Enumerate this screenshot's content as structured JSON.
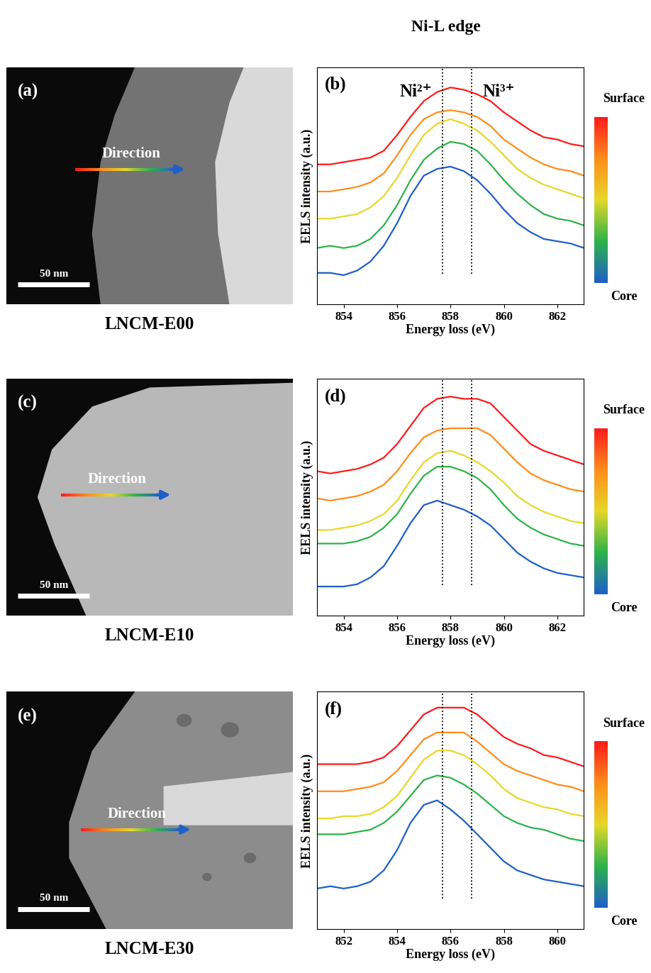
{
  "title": "Ni-L edge",
  "color_scale": {
    "top": "Surface",
    "bottom": "Core"
  },
  "images": [
    {
      "label": "(a)",
      "arrow_text": "Direction",
      "scale_bar": "50 nm",
      "sample": "LNCM-E00"
    },
    {
      "label": "(c)",
      "arrow_text": "Direction",
      "scale_bar": "50 nm",
      "sample": "LNCM-E10"
    },
    {
      "label": "(e)",
      "arrow_text": "Direction",
      "scale_bar": "50 nm",
      "sample": "LNCM-E30"
    }
  ],
  "chart_data": [
    {
      "type": "line",
      "panel_label": "(b)",
      "xlabel": "Energy loss (eV)",
      "ylabel": "EELS intensity (a.u.)",
      "annotations": [
        "Ni²⁺",
        "Ni³⁺"
      ],
      "vlines": [
        857.7,
        858.8
      ],
      "x": [
        853,
        853.5,
        854,
        854.5,
        855,
        855.5,
        856,
        856.5,
        857,
        857.5,
        858,
        858.5,
        859,
        859.5,
        860,
        860.5,
        861,
        861.5,
        862,
        862.5,
        863
      ],
      "xlim": [
        853,
        863
      ],
      "xticks": [
        854,
        856,
        858,
        860,
        862
      ],
      "ylim": [
        0,
        10.5
      ],
      "tick_labels": "x",
      "series": [
        {
          "color": "#ff1a1a",
          "values": [
            6.2,
            6.2,
            6.3,
            6.4,
            6.5,
            6.8,
            7.5,
            8.3,
            9.0,
            9.4,
            9.6,
            9.5,
            9.3,
            9.0,
            8.5,
            8.1,
            7.7,
            7.4,
            7.3,
            7.1,
            7.0
          ]
        },
        {
          "color": "#ff8c1a",
          "values": [
            5.0,
            5.0,
            5.1,
            5.2,
            5.4,
            5.8,
            6.6,
            7.5,
            8.2,
            8.5,
            8.6,
            8.5,
            8.3,
            7.9,
            7.3,
            6.9,
            6.5,
            6.2,
            6.0,
            5.9,
            5.7
          ]
        },
        {
          "color": "#e6d82a",
          "values": [
            3.8,
            3.8,
            3.9,
            4.0,
            4.3,
            4.8,
            5.6,
            6.6,
            7.5,
            8.0,
            8.2,
            8.0,
            7.7,
            7.2,
            6.6,
            6.0,
            5.6,
            5.3,
            5.1,
            4.9,
            4.7
          ]
        },
        {
          "color": "#2db34a",
          "values": [
            2.5,
            2.6,
            2.5,
            2.6,
            2.9,
            3.5,
            4.4,
            5.5,
            6.4,
            6.9,
            7.2,
            7.1,
            6.8,
            6.2,
            5.5,
            4.9,
            4.4,
            4.0,
            3.8,
            3.7,
            3.5
          ]
        },
        {
          "color": "#1f5fc8",
          "values": [
            1.4,
            1.4,
            1.3,
            1.5,
            1.9,
            2.6,
            3.6,
            4.8,
            5.7,
            6.0,
            6.1,
            5.9,
            5.5,
            4.9,
            4.2,
            3.6,
            3.2,
            2.9,
            2.8,
            2.7,
            2.5
          ]
        }
      ]
    },
    {
      "type": "line",
      "panel_label": "(d)",
      "xlabel": "Energy loss (eV)",
      "ylabel": "EELS intensity (a.u.)",
      "vlines": [
        857.7,
        858.8
      ],
      "x": [
        853,
        853.5,
        854,
        854.5,
        855,
        855.5,
        856,
        856.5,
        857,
        857.5,
        858,
        858.5,
        859,
        859.5,
        860,
        860.5,
        861,
        861.5,
        862,
        862.5,
        863
      ],
      "xlim": [
        853,
        863
      ],
      "xticks": [
        854,
        856,
        858,
        860,
        862
      ],
      "ylim": [
        0,
        10.5
      ],
      "tick_labels": "x",
      "series": [
        {
          "color": "#ff1a1a",
          "values": [
            6.4,
            6.3,
            6.4,
            6.5,
            6.7,
            7.0,
            7.6,
            8.4,
            9.2,
            9.6,
            9.7,
            9.6,
            9.6,
            9.4,
            8.8,
            8.2,
            7.6,
            7.3,
            7.1,
            6.9,
            6.7
          ]
        },
        {
          "color": "#ff8c1a",
          "values": [
            5.2,
            5.1,
            5.2,
            5.3,
            5.5,
            5.8,
            6.4,
            7.2,
            7.9,
            8.2,
            8.3,
            8.3,
            8.3,
            8.0,
            7.4,
            6.8,
            6.3,
            6.0,
            5.8,
            5.6,
            5.5
          ]
        },
        {
          "color": "#e6d82a",
          "values": [
            3.8,
            3.8,
            3.9,
            4.0,
            4.2,
            4.5,
            5.1,
            6.0,
            6.8,
            7.2,
            7.3,
            7.1,
            6.8,
            6.4,
            5.9,
            5.3,
            4.9,
            4.6,
            4.4,
            4.2,
            4.1
          ]
        },
        {
          "color": "#2db34a",
          "values": [
            3.2,
            3.2,
            3.2,
            3.3,
            3.5,
            3.9,
            4.5,
            5.4,
            6.2,
            6.6,
            6.6,
            6.4,
            6.1,
            5.6,
            4.9,
            4.3,
            3.9,
            3.6,
            3.4,
            3.2,
            3.1
          ]
        },
        {
          "color": "#1f5fc8",
          "values": [
            1.3,
            1.3,
            1.3,
            1.4,
            1.7,
            2.2,
            3.1,
            4.1,
            4.9,
            5.1,
            4.9,
            4.7,
            4.4,
            4.0,
            3.4,
            2.8,
            2.4,
            2.1,
            1.9,
            1.8,
            1.7
          ]
        }
      ]
    },
    {
      "type": "line",
      "panel_label": "(f)",
      "xlabel": "Energy loss (eV)",
      "ylabel": "EELS intensity (a.u.)",
      "vlines": [
        855.7,
        856.8
      ],
      "x": [
        851,
        851.5,
        852,
        852.5,
        853,
        853.5,
        854,
        854.5,
        855,
        855.5,
        856,
        856.5,
        857,
        857.5,
        858,
        858.5,
        859,
        859.5,
        860,
        860.5,
        861
      ],
      "xlim": [
        851,
        861
      ],
      "xticks": [
        852,
        854,
        856,
        858,
        860
      ],
      "ylim": [
        0,
        10.5
      ],
      "tick_labels": "x",
      "series": [
        {
          "color": "#ff1a1a",
          "values": [
            7.3,
            7.3,
            7.3,
            7.3,
            7.4,
            7.6,
            8.1,
            8.8,
            9.5,
            9.8,
            9.8,
            9.8,
            9.5,
            9.0,
            8.5,
            8.2,
            8.0,
            7.7,
            7.6,
            7.4,
            7.2
          ]
        },
        {
          "color": "#ff8c1a",
          "values": [
            6.1,
            6.1,
            6.1,
            6.2,
            6.3,
            6.5,
            7.0,
            7.7,
            8.4,
            8.7,
            8.7,
            8.7,
            8.3,
            7.8,
            7.3,
            7.0,
            6.8,
            6.6,
            6.4,
            6.3,
            6.1
          ]
        },
        {
          "color": "#e6d82a",
          "values": [
            4.9,
            4.9,
            5.0,
            5.0,
            5.1,
            5.4,
            5.9,
            6.7,
            7.5,
            7.9,
            7.9,
            7.7,
            7.3,
            6.8,
            6.2,
            5.8,
            5.6,
            5.4,
            5.3,
            5.1,
            5.0
          ]
        },
        {
          "color": "#2db34a",
          "values": [
            4.2,
            4.2,
            4.2,
            4.3,
            4.4,
            4.7,
            5.2,
            5.9,
            6.6,
            6.8,
            6.7,
            6.4,
            6.0,
            5.5,
            5.0,
            4.7,
            4.5,
            4.4,
            4.2,
            4.0,
            3.9
          ]
        },
        {
          "color": "#1f5fc8",
          "values": [
            1.8,
            1.9,
            1.8,
            1.9,
            2.1,
            2.6,
            3.5,
            4.7,
            5.5,
            5.7,
            5.3,
            4.8,
            4.2,
            3.6,
            3.0,
            2.6,
            2.4,
            2.2,
            2.1,
            2.0,
            1.9
          ]
        }
      ]
    }
  ]
}
